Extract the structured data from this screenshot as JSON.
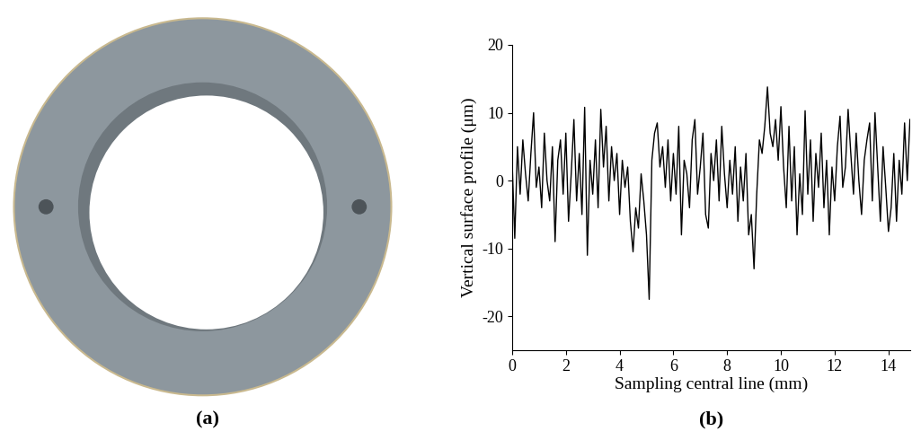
{
  "panel_labels": [
    "(a)",
    "(b)"
  ],
  "chart_data": {
    "type": "line",
    "x_label": "Sampling central line (mm)",
    "y_label": "Vertical surface profile (μm)",
    "color": "#000000",
    "x": [
      0.0,
      0.1,
      0.2,
      0.3,
      0.4,
      0.5,
      0.6,
      0.7,
      0.8,
      0.9,
      1.0,
      1.1,
      1.2,
      1.3,
      1.4,
      1.5,
      1.6,
      1.7,
      1.8,
      1.9,
      2.0,
      2.1,
      2.2,
      2.3,
      2.4,
      2.5,
      2.6,
      2.7,
      2.8,
      2.9,
      3.0,
      3.1,
      3.2,
      3.3,
      3.4,
      3.5,
      3.6,
      3.7,
      3.8,
      3.9,
      4.0,
      4.1,
      4.2,
      4.3,
      4.4,
      4.5,
      4.6,
      4.7,
      4.8,
      4.9,
      5.0,
      5.1,
      5.2,
      5.3,
      5.4,
      5.5,
      5.6,
      5.7,
      5.8,
      5.9,
      6.0,
      6.1,
      6.2,
      6.3,
      6.4,
      6.5,
      6.6,
      6.7,
      6.8,
      6.9,
      7.0,
      7.1,
      7.2,
      7.3,
      7.4,
      7.5,
      7.6,
      7.7,
      7.8,
      7.9,
      8.0,
      8.1,
      8.2,
      8.3,
      8.4,
      8.5,
      8.6,
      8.7,
      8.8,
      8.9,
      9.0,
      9.1,
      9.2,
      9.3,
      9.4,
      9.5,
      9.6,
      9.7,
      9.8,
      9.9,
      10.0,
      10.1,
      10.2,
      10.3,
      10.4,
      10.5,
      10.6,
      10.7,
      10.8,
      10.9,
      11.0,
      11.1,
      11.2,
      11.3,
      11.4,
      11.5,
      11.6,
      11.7,
      11.8,
      11.9,
      12.0,
      12.1,
      12.2,
      12.3,
      12.4,
      12.5,
      12.6,
      12.7,
      12.8,
      12.9,
      13.0,
      13.1,
      13.2,
      13.3,
      13.4,
      13.5,
      13.6,
      13.7,
      13.8,
      13.9,
      14.0,
      14.1,
      14.2,
      14.3,
      14.4,
      14.5,
      14.6,
      14.7,
      14.8
    ],
    "values": [
      3,
      -8.5,
      5,
      -2,
      6,
      1,
      -3,
      4,
      10,
      -1,
      2,
      -4,
      7,
      0,
      -3,
      5,
      -9,
      3,
      6,
      -2,
      7,
      -6,
      1,
      9,
      -3,
      4,
      -5,
      10.8,
      -11,
      3,
      -2,
      6,
      -4,
      10.5,
      2,
      8,
      -3,
      5,
      0,
      4,
      -5,
      3,
      -1,
      2,
      -6,
      -10.5,
      -4,
      -7,
      1,
      -3,
      -8,
      -17.5,
      3,
      7,
      8.5,
      2,
      5,
      -1,
      6,
      -3,
      4,
      -2,
      8,
      -8,
      3,
      1,
      -4,
      6,
      9,
      -2,
      2,
      7,
      -5,
      -7,
      4,
      0,
      6,
      -3,
      8,
      1,
      -4,
      3,
      -2,
      5,
      -6,
      2,
      -3,
      4,
      -8,
      -5,
      -13,
      -2,
      6,
      4,
      8,
      13.8,
      7,
      5,
      9,
      3,
      10.9,
      2,
      -4,
      8,
      -3,
      5,
      -8,
      1,
      -5,
      10.3,
      -2,
      6,
      -6,
      4,
      -1,
      7,
      -4,
      3,
      -8,
      2,
      -3,
      5,
      9.5,
      -1,
      2,
      10.5,
      4,
      -2,
      7,
      0,
      -5,
      3,
      6,
      8.5,
      -3,
      10,
      2,
      -6,
      5,
      -1,
      -7.5,
      -4,
      4,
      -6,
      3,
      -2,
      8.5,
      0,
      9
    ],
    "xlim": [
      0,
      14.8
    ],
    "ylim": [
      -25,
      20
    ],
    "xticks": [
      0,
      2,
      4,
      6,
      8,
      10,
      12,
      14
    ],
    "yticks": [
      -20,
      -10,
      0,
      10,
      20
    ]
  }
}
